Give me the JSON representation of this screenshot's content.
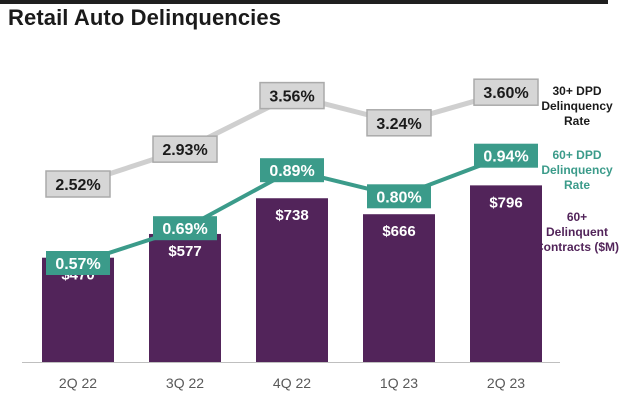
{
  "title": "Retail Auto Delinquencies",
  "legend": [
    {
      "label": "30+ DPD\nDelinquency\nRate"
    },
    {
      "label": "60+ DPD\nDelinquency\nRate"
    },
    {
      "label": "60+\nDelinquent\nContracts ($M)"
    }
  ],
  "colors": {
    "bar": "#52245a",
    "rate60": "#3b9b8a",
    "rate30_box": "#d6d6d6",
    "rate30_line": "#cfcfcf",
    "axis": "#bfbfbf"
  },
  "chart_data": {
    "type": "bar",
    "categories": [
      "2Q 22",
      "3Q 22",
      "4Q 22",
      "1Q 23",
      "2Q 23"
    ],
    "series": [
      {
        "name": "60+ Delinquent Contracts ($M)",
        "type": "bar",
        "values": [
          470,
          577,
          738,
          666,
          796
        ],
        "labels": [
          "$470",
          "$577",
          "$738",
          "$666",
          "$796"
        ]
      },
      {
        "name": "60+ DPD Delinquency Rate",
        "type": "line",
        "values": [
          0.57,
          0.69,
          0.89,
          0.8,
          0.94
        ],
        "labels": [
          "0.57%",
          "0.69%",
          "0.89%",
          "0.80%",
          "0.94%"
        ]
      },
      {
        "name": "30+ DPD Delinquency Rate",
        "type": "line",
        "values": [
          2.52,
          2.93,
          3.56,
          3.24,
          3.6
        ],
        "labels": [
          "2.52%",
          "2.93%",
          "3.56%",
          "3.24%",
          "3.60%"
        ]
      }
    ],
    "title": "Retail Auto Delinquencies",
    "xlabel": "",
    "ylabel": "",
    "ylim": [
      0,
      1000
    ],
    "grid": false,
    "legend_position": "right"
  }
}
